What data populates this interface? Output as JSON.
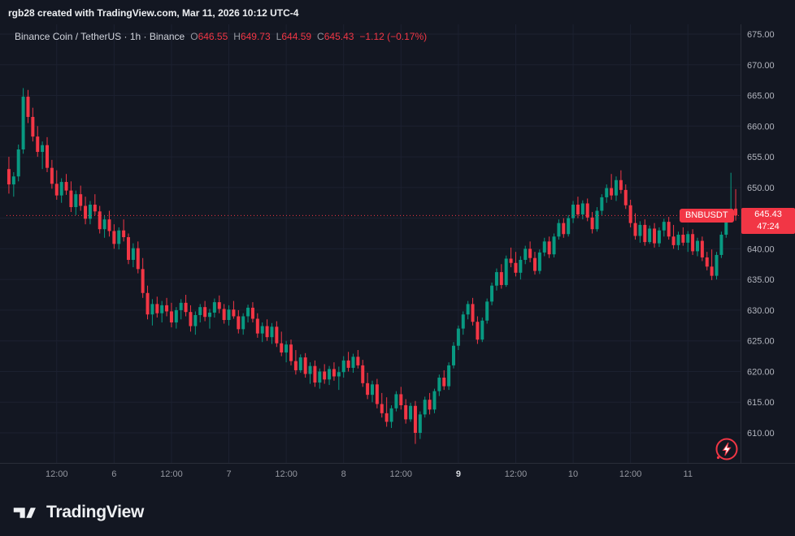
{
  "topbar": {
    "text": "rgb28 created with TradingView.com, Mar 11, 2026 10:12 UTC-4"
  },
  "legend": {
    "title": "Binance Coin / TetherUS · 1h · Binance",
    "o": {
      "k": "O",
      "v": "646.55"
    },
    "h": {
      "k": "H",
      "v": "649.73"
    },
    "l": {
      "k": "L",
      "v": "644.59"
    },
    "c": {
      "k": "C",
      "v": "645.43"
    },
    "change": "−1.12 (−0.17%)"
  },
  "price_label": {
    "symbol": "BNBUSDT",
    "price": "645.43",
    "countdown": "47:24"
  },
  "footer": {
    "brand": "TradingView"
  },
  "colors": {
    "bg": "#131722",
    "grid": "#1c2130",
    "sep": "#2a2e39",
    "axis_text": "#b2b5be",
    "time_text": "#9598a1",
    "time_bold": "#d8dbe1",
    "up": "#089981",
    "down": "#f23645"
  },
  "chart_data": {
    "type": "candlestick",
    "symbol": "BNBUSDT",
    "interval": "1h",
    "title": "Binance Coin / TetherUS 1h Binance",
    "last_price": 645.43,
    "y_axis": {
      "min": 610,
      "max": 675,
      "ticks": [
        675,
        670,
        665,
        660,
        655,
        650,
        645,
        640,
        635,
        630,
        625,
        620,
        615,
        610
      ]
    },
    "x_labels": [
      {
        "i": 10,
        "label": "12:00",
        "bold": false
      },
      {
        "i": 22,
        "label": "6",
        "bold": false
      },
      {
        "i": 34,
        "label": "12:00",
        "bold": false
      },
      {
        "i": 46,
        "label": "7",
        "bold": false
      },
      {
        "i": 58,
        "label": "12:00",
        "bold": false
      },
      {
        "i": 70,
        "label": "8",
        "bold": false
      },
      {
        "i": 82,
        "label": "12:00",
        "bold": false
      },
      {
        "i": 94,
        "label": "9",
        "bold": true
      },
      {
        "i": 106,
        "label": "12:00",
        "bold": false
      },
      {
        "i": 118,
        "label": "10",
        "bold": false
      },
      {
        "i": 130,
        "label": "12:00",
        "bold": false
      },
      {
        "i": 142,
        "label": "11",
        "bold": false
      }
    ],
    "candles": [
      [
        653.0,
        655.0,
        649.0,
        650.5
      ],
      [
        650.5,
        652.5,
        648.5,
        651.8
      ],
      [
        651.8,
        657.0,
        651.0,
        656.2
      ],
      [
        656.2,
        666.2,
        655.5,
        664.8
      ],
      [
        664.8,
        665.9,
        660.5,
        661.5
      ],
      [
        661.5,
        663.0,
        657.5,
        658.3
      ],
      [
        658.3,
        660.0,
        655.0,
        655.8
      ],
      [
        655.8,
        657.5,
        653.0,
        656.9
      ],
      [
        656.9,
        658.2,
        652.5,
        653.2
      ],
      [
        653.2,
        654.5,
        649.8,
        650.6
      ],
      [
        650.6,
        652.8,
        648.0,
        648.7
      ],
      [
        648.7,
        651.5,
        647.5,
        650.9
      ],
      [
        650.9,
        652.2,
        648.8,
        649.5
      ],
      [
        649.5,
        651.0,
        646.0,
        646.8
      ],
      [
        646.8,
        649.5,
        645.5,
        648.9
      ],
      [
        648.9,
        650.3,
        646.2,
        647.0
      ],
      [
        647.0,
        648.5,
        644.0,
        644.9
      ],
      [
        644.9,
        647.8,
        644.0,
        647.2
      ],
      [
        647.2,
        648.9,
        645.5,
        646.1
      ],
      [
        646.1,
        647.0,
        642.5,
        643.2
      ],
      [
        643.2,
        645.5,
        641.8,
        644.8
      ],
      [
        644.8,
        646.2,
        642.0,
        642.9
      ],
      [
        642.9,
        644.0,
        640.0,
        640.8
      ],
      [
        640.8,
        643.5,
        639.9,
        643.0
      ],
      [
        643.0,
        644.8,
        641.2,
        641.9
      ],
      [
        641.9,
        642.5,
        637.5,
        638.2
      ],
      [
        638.2,
        640.9,
        637.0,
        640.1
      ],
      [
        640.1,
        641.2,
        636.0,
        636.7
      ],
      [
        636.7,
        638.5,
        632.0,
        632.8
      ],
      [
        632.8,
        634.0,
        628.5,
        629.3
      ],
      [
        629.3,
        631.8,
        627.5,
        631.0
      ],
      [
        631.0,
        632.2,
        628.8,
        629.5
      ],
      [
        629.5,
        631.5,
        628.0,
        630.8
      ],
      [
        630.8,
        632.0,
        629.0,
        629.8
      ],
      [
        629.8,
        631.2,
        627.2,
        628.0
      ],
      [
        628.0,
        630.5,
        627.0,
        630.0
      ],
      [
        630.0,
        631.8,
        628.5,
        631.2
      ],
      [
        631.2,
        632.5,
        629.0,
        629.7
      ],
      [
        629.7,
        630.8,
        626.5,
        627.4
      ],
      [
        627.4,
        629.8,
        626.0,
        629.2
      ],
      [
        629.2,
        631.0,
        628.0,
        630.5
      ],
      [
        630.5,
        631.5,
        628.2,
        628.9
      ],
      [
        628.9,
        630.2,
        627.0,
        629.6
      ],
      [
        629.6,
        631.9,
        628.8,
        631.3
      ],
      [
        631.3,
        632.4,
        629.5,
        630.2
      ],
      [
        630.2,
        631.0,
        627.8,
        628.4
      ],
      [
        628.4,
        630.8,
        627.5,
        630.1
      ],
      [
        630.1,
        631.5,
        628.6,
        629.0
      ],
      [
        629.0,
        630.0,
        626.2,
        626.9
      ],
      [
        626.9,
        629.5,
        626.0,
        629.0
      ],
      [
        629.0,
        630.9,
        628.0,
        630.4
      ],
      [
        630.4,
        631.3,
        628.0,
        628.6
      ],
      [
        628.6,
        629.5,
        625.5,
        626.2
      ],
      [
        626.2,
        628.0,
        624.8,
        627.4
      ],
      [
        627.4,
        628.5,
        625.0,
        625.6
      ],
      [
        625.6,
        627.9,
        624.5,
        627.3
      ],
      [
        627.3,
        628.2,
        624.0,
        624.6
      ],
      [
        624.6,
        626.5,
        622.5,
        623.1
      ],
      [
        623.1,
        625.0,
        621.5,
        624.4
      ],
      [
        624.4,
        625.2,
        621.0,
        621.7
      ],
      [
        621.7,
        623.5,
        619.5,
        620.2
      ],
      [
        620.2,
        622.8,
        619.8,
        622.3
      ],
      [
        622.3,
        623.0,
        619.0,
        619.6
      ],
      [
        619.6,
        621.5,
        618.0,
        620.9
      ],
      [
        620.9,
        621.8,
        617.5,
        618.2
      ],
      [
        618.2,
        620.5,
        617.2,
        620.0
      ],
      [
        620.0,
        621.2,
        618.0,
        618.7
      ],
      [
        618.7,
        620.9,
        617.8,
        620.4
      ],
      [
        620.4,
        621.5,
        618.5,
        619.2
      ],
      [
        619.2,
        620.8,
        617.0,
        619.9
      ],
      [
        619.9,
        622.5,
        619.0,
        621.8
      ],
      [
        621.8,
        623.2,
        620.0,
        620.6
      ],
      [
        620.6,
        622.9,
        619.8,
        622.4
      ],
      [
        622.4,
        623.5,
        620.5,
        621.0
      ],
      [
        621.0,
        621.9,
        617.5,
        618.1
      ],
      [
        618.1,
        619.8,
        615.5,
        616.2
      ],
      [
        616.2,
        618.5,
        615.0,
        617.9
      ],
      [
        617.9,
        618.8,
        614.0,
        614.7
      ],
      [
        614.7,
        616.5,
        612.5,
        613.2
      ],
      [
        613.2,
        615.8,
        611.0,
        611.8
      ],
      [
        611.8,
        614.5,
        610.8,
        614.0
      ],
      [
        614.0,
        616.8,
        613.5,
        616.3
      ],
      [
        616.3,
        617.5,
        613.8,
        614.5
      ],
      [
        614.5,
        615.5,
        611.5,
        612.2
      ],
      [
        612.2,
        614.9,
        611.8,
        614.4
      ],
      [
        614.4,
        615.2,
        608.2,
        610.0
      ],
      [
        610.0,
        613.5,
        609.0,
        613.0
      ],
      [
        613.0,
        615.9,
        612.5,
        615.4
      ],
      [
        615.4,
        616.5,
        613.0,
        613.8
      ],
      [
        613.8,
        617.2,
        613.2,
        616.8
      ],
      [
        616.8,
        619.5,
        616.0,
        619.0
      ],
      [
        619.0,
        620.2,
        617.0,
        617.6
      ],
      [
        617.6,
        621.5,
        617.0,
        621.0
      ],
      [
        621.0,
        624.8,
        620.5,
        624.2
      ],
      [
        624.2,
        627.5,
        623.5,
        627.0
      ],
      [
        627.0,
        629.8,
        626.0,
        629.3
      ],
      [
        629.3,
        631.5,
        628.5,
        631.0
      ],
      [
        631.0,
        632.0,
        627.5,
        628.1
      ],
      [
        628.1,
        629.0,
        624.5,
        625.2
      ],
      [
        625.2,
        628.8,
        624.8,
        628.3
      ],
      [
        628.3,
        631.9,
        627.8,
        631.4
      ],
      [
        631.4,
        634.5,
        630.8,
        634.0
      ],
      [
        634.0,
        636.8,
        633.2,
        636.2
      ],
      [
        636.2,
        637.5,
        633.5,
        634.1
      ],
      [
        634.1,
        638.9,
        633.8,
        638.4
      ],
      [
        638.4,
        640.2,
        637.0,
        637.7
      ],
      [
        637.7,
        639.5,
        635.5,
        636.1
      ],
      [
        636.1,
        638.8,
        635.0,
        638.2
      ],
      [
        638.2,
        640.5,
        637.5,
        640.0
      ],
      [
        640.0,
        641.2,
        637.8,
        638.5
      ],
      [
        638.5,
        639.5,
        635.8,
        636.4
      ],
      [
        636.4,
        639.9,
        635.9,
        639.4
      ],
      [
        639.4,
        641.8,
        638.8,
        641.2
      ],
      [
        641.2,
        642.0,
        638.5,
        639.1
      ],
      [
        639.1,
        642.5,
        638.6,
        642.0
      ],
      [
        642.0,
        644.8,
        641.5,
        644.2
      ],
      [
        644.2,
        645.0,
        641.8,
        642.4
      ],
      [
        642.4,
        645.5,
        642.0,
        645.0
      ],
      [
        645.0,
        647.8,
        644.2,
        647.2
      ],
      [
        647.2,
        648.5,
        645.0,
        645.6
      ],
      [
        645.6,
        647.9,
        644.8,
        647.4
      ],
      [
        647.4,
        648.2,
        644.5,
        645.1
      ],
      [
        645.1,
        646.0,
        642.5,
        643.2
      ],
      [
        643.2,
        646.8,
        642.8,
        646.2
      ],
      [
        646.2,
        648.9,
        645.5,
        648.4
      ],
      [
        648.4,
        650.5,
        647.5,
        649.9
      ],
      [
        649.9,
        652.2,
        648.0,
        648.7
      ],
      [
        648.7,
        651.8,
        647.8,
        651.2
      ],
      [
        651.2,
        652.8,
        649.0,
        649.6
      ],
      [
        649.6,
        650.5,
        646.5,
        647.1
      ],
      [
        647.1,
        648.0,
        643.5,
        644.2
      ],
      [
        644.2,
        645.8,
        641.5,
        642.1
      ],
      [
        642.1,
        644.5,
        641.0,
        643.9
      ],
      [
        643.9,
        644.8,
        640.5,
        641.1
      ],
      [
        641.1,
        643.8,
        640.8,
        643.3
      ],
      [
        643.3,
        644.2,
        640.2,
        640.9
      ],
      [
        640.9,
        643.5,
        640.3,
        643.0
      ],
      [
        643.0,
        644.9,
        642.0,
        644.4
      ],
      [
        644.4,
        645.2,
        641.5,
        642.0
      ],
      [
        642.0,
        643.9,
        640.0,
        640.6
      ],
      [
        640.6,
        642.8,
        639.8,
        642.3
      ],
      [
        642.3,
        643.5,
        640.5,
        641.0
      ],
      [
        641.0,
        642.9,
        639.5,
        642.4
      ],
      [
        642.4,
        643.2,
        639.0,
        639.6
      ],
      [
        639.6,
        641.8,
        638.8,
        641.3
      ],
      [
        641.3,
        642.0,
        638.0,
        638.6
      ],
      [
        638.6,
        639.5,
        636.5,
        637.1
      ],
      [
        637.1,
        639.9,
        634.9,
        635.6
      ],
      [
        635.6,
        639.5,
        635.0,
        639.0
      ],
      [
        639.0,
        642.8,
        638.5,
        642.3
      ],
      [
        642.3,
        645.9,
        641.8,
        645.4
      ],
      [
        645.4,
        652.4,
        645.0,
        646.55
      ],
      [
        646.55,
        649.73,
        644.59,
        645.43
      ]
    ]
  }
}
